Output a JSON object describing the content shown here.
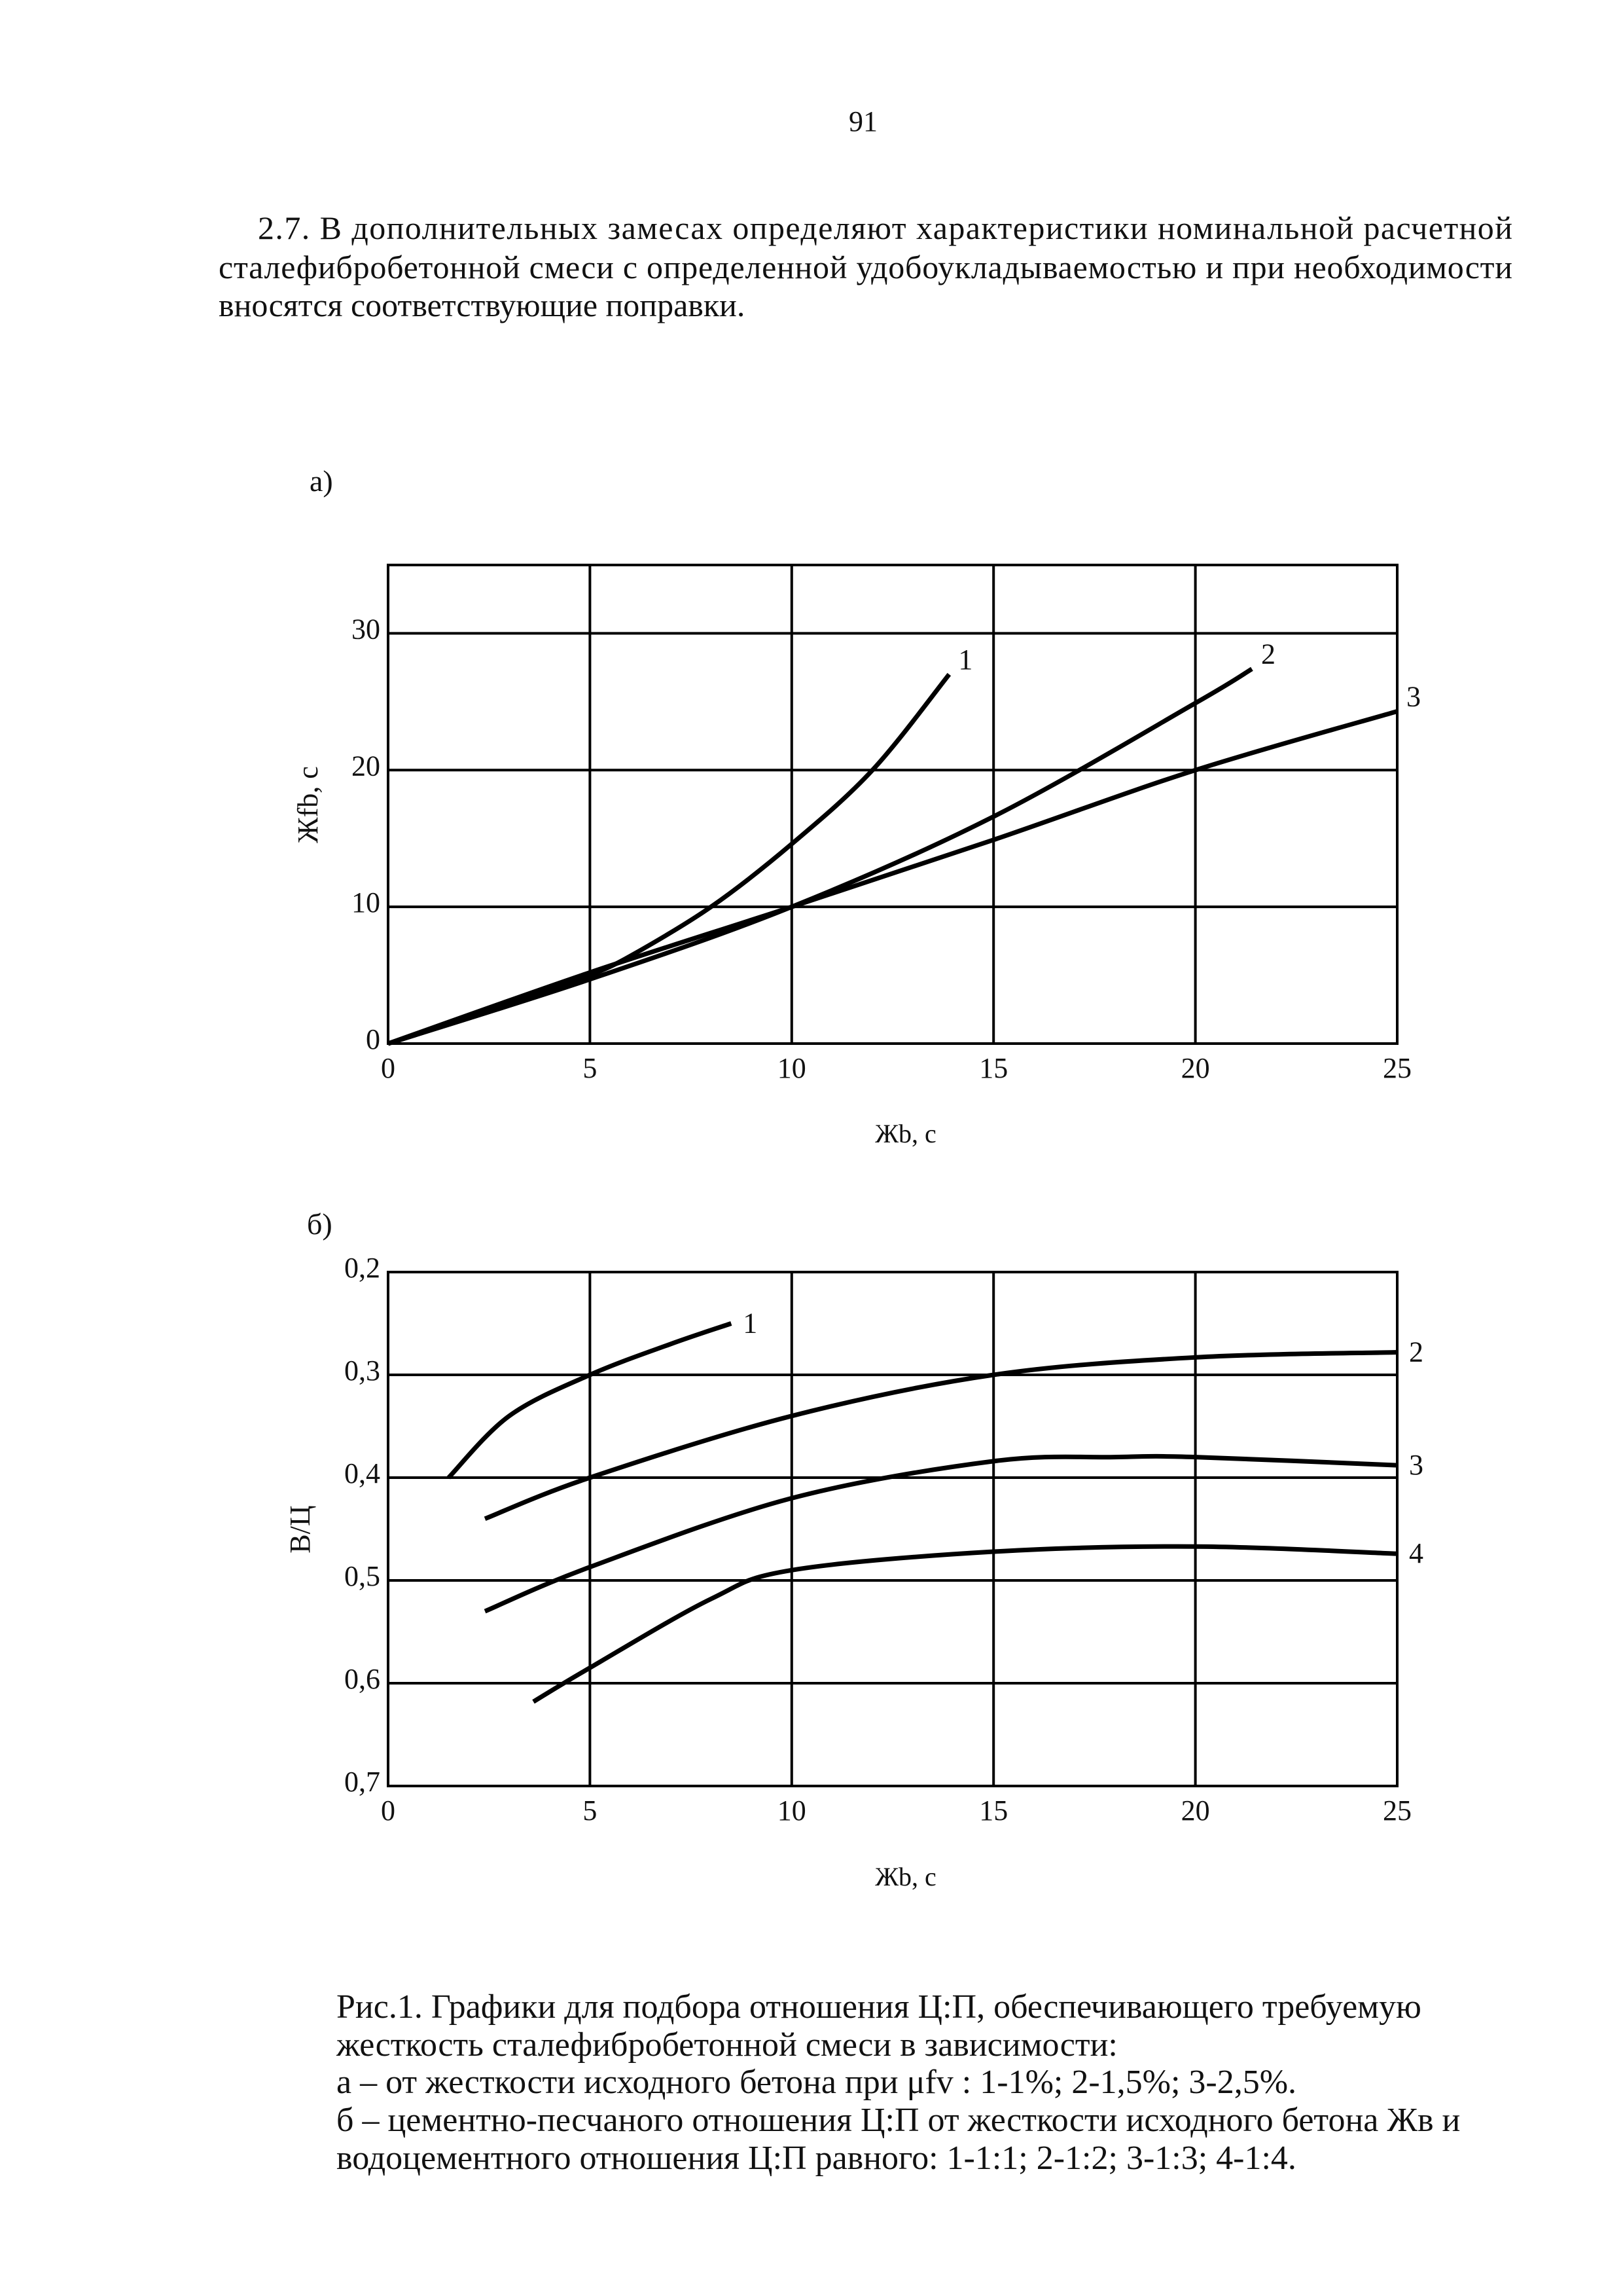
{
  "page_number": "91",
  "paragraph": [
    "2.7. В дополнительных замесах определяют характеристики номинальной расчетной",
    "сталефибробетонной смеси с определенной удобоукладываемостью и при необходимости",
    "вносятся соответствующие поправки."
  ],
  "chart_data": [
    {
      "type": "line",
      "panel_label": "а)",
      "x_label": "Жb, с",
      "y_label": "Жfb, с",
      "xlim": [
        0,
        25
      ],
      "ylim": [
        0,
        35
      ],
      "xticks": [
        0,
        5,
        10,
        15,
        20,
        25
      ],
      "yticks": [
        0,
        10,
        20,
        30
      ],
      "grid": true,
      "y_reversed": false,
      "series": [
        {
          "name": "1",
          "color": "#000000",
          "x": [
            0,
            2,
            4,
            5,
            6,
            8,
            10,
            12,
            13.9
          ],
          "values": [
            0,
            1.9,
            4,
            5,
            6.4,
            10,
            14.6,
            20,
            27
          ]
        },
        {
          "name": "2",
          "color": "#000000",
          "x": [
            0,
            5,
            10,
            15,
            20,
            21.4
          ],
          "values": [
            0,
            4.7,
            10,
            16.6,
            24.9,
            27.4
          ]
        },
        {
          "name": "3",
          "color": "#000000",
          "x": [
            0,
            5,
            10,
            15,
            20,
            25
          ],
          "values": [
            0,
            5.2,
            10,
            14.9,
            20,
            24.3
          ]
        }
      ]
    },
    {
      "type": "line",
      "panel_label": "б)",
      "x_label": "Жb, с",
      "y_label": "В/Ц",
      "xlim": [
        0,
        25
      ],
      "ylim": [
        0.2,
        0.7
      ],
      "xticks": [
        0,
        5,
        10,
        15,
        20,
        25
      ],
      "yticks": [
        {
          "value": 0.2,
          "label": "0,2"
        },
        {
          "value": 0.3,
          "label": "0,3"
        },
        {
          "value": 0.4,
          "label": "0,4"
        },
        {
          "value": 0.5,
          "label": "0,5"
        },
        {
          "value": 0.6,
          "label": "0,6"
        },
        {
          "value": 0.7,
          "label": "0,7"
        }
      ],
      "grid": true,
      "y_reversed": true,
      "series": [
        {
          "name": "1",
          "color": "#000000",
          "x": [
            1.5,
            3,
            5,
            7,
            8.5
          ],
          "values": [
            0.4,
            0.34,
            0.3,
            0.27,
            0.25
          ]
        },
        {
          "name": "2",
          "color": "#000000",
          "x": [
            2.4,
            5,
            10,
            15,
            20,
            25
          ],
          "values": [
            0.44,
            0.4,
            0.34,
            0.3,
            0.283,
            0.278
          ]
        },
        {
          "name": "3",
          "color": "#000000",
          "x": [
            2.4,
            5,
            10,
            15,
            18,
            20,
            25
          ],
          "values": [
            0.53,
            0.487,
            0.42,
            0.384,
            0.38,
            0.38,
            0.388
          ]
        },
        {
          "name": "4",
          "color": "#000000",
          "x": [
            3.6,
            5,
            8,
            10,
            15,
            20,
            25
          ],
          "values": [
            0.618,
            0.585,
            0.518,
            0.49,
            0.472,
            0.467,
            0.474
          ]
        }
      ]
    }
  ],
  "caption": [
    "Рис.1. Графики для подбора отношения Ц:П, обеспечивающего требуемую",
    "жесткость сталефибробетонной смеси в зависимости:",
    "а – от жесткости исходного бетона при μfv : 1-1%; 2-1,5%; 3-2,5%.",
    "б – цементно-песчаного отношения Ц:П от жесткости исходного бетона Жв и",
    "водоцементного отношения Ц:П равного: 1-1:1; 2-1:2;  3-1:3; 4-1:4."
  ]
}
